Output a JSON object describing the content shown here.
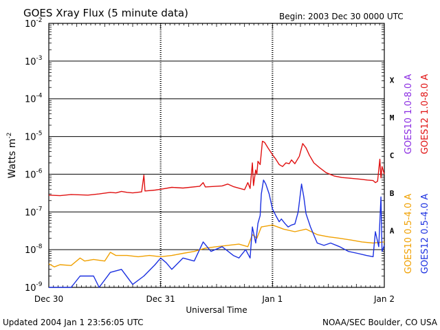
{
  "chart_data": {
    "type": "line",
    "title": "GOES Xray Flux (5 minute data)",
    "begin_label": "Begin:  2003 Dec 30 0000 UTC",
    "xlabel": "Universal Time",
    "ylabel": "Watts m",
    "ylabel_superscript": "-2",
    "footer_left": "Updated 2004 Jan  1 23:56:05 UTC",
    "footer_right": "NOAA/SEC Boulder, CO USA",
    "x_ticks": [
      {
        "day": 0,
        "label": "Dec 30"
      },
      {
        "day": 1,
        "label": "Dec 31"
      },
      {
        "day": 2,
        "label": "Jan 1"
      },
      {
        "day": 3,
        "label": "Jan 2"
      }
    ],
    "xlim_days": [
      0,
      3
    ],
    "y_scale": "log",
    "ylim_exponent": [
      -9,
      -2
    ],
    "y_ticks": [
      {
        "exp": -2,
        "label": "10",
        "sup": "-2"
      },
      {
        "exp": -3,
        "label": "10",
        "sup": "-3"
      },
      {
        "exp": -4,
        "label": "10",
        "sup": "-4"
      },
      {
        "exp": -5,
        "label": "10",
        "sup": "-5"
      },
      {
        "exp": -6,
        "label": "10",
        "sup": "-6"
      },
      {
        "exp": -7,
        "label": "10",
        "sup": "-7"
      },
      {
        "exp": -8,
        "label": "10",
        "sup": "-8"
      },
      {
        "exp": -9,
        "label": "10",
        "sup": "-9"
      }
    ],
    "flare_classes": [
      {
        "label": "X",
        "exp": -4
      },
      {
        "label": "M",
        "exp": -5
      },
      {
        "label": "C",
        "exp": -6
      },
      {
        "label": "B",
        "exp": -7
      },
      {
        "label": "A",
        "exp": -8
      }
    ],
    "right_legend_top": [
      {
        "name": "GOES10 1.0-8.0 A",
        "color": "#8a2be2"
      },
      {
        "name": "GOES12 1.0-8.0 A",
        "color": "#e01010"
      }
    ],
    "right_legend_bottom": [
      {
        "name": "GOES10 0.5-4.0 A",
        "color": "#f0a000"
      },
      {
        "name": "GOES12 0.5-4.0 A",
        "color": "#1a2fe0"
      }
    ],
    "series": [
      {
        "name": "GOES12 1.0-8.0 A",
        "color": "#e01010",
        "points": [
          [
            0.0,
            2.8e-07
          ],
          [
            0.1,
            2.7e-07
          ],
          [
            0.2,
            2.9e-07
          ],
          [
            0.35,
            2.8e-07
          ],
          [
            0.45,
            3e-07
          ],
          [
            0.55,
            3.3e-07
          ],
          [
            0.6,
            3.2e-07
          ],
          [
            0.65,
            3.5e-07
          ],
          [
            0.7,
            3.3e-07
          ],
          [
            0.75,
            3.2e-07
          ],
          [
            0.83,
            3.4e-07
          ],
          [
            0.85,
            9.5e-07
          ],
          [
            0.86,
            3.6e-07
          ],
          [
            0.95,
            3.8e-07
          ],
          [
            1.0,
            4e-07
          ],
          [
            1.1,
            4.5e-07
          ],
          [
            1.2,
            4.3e-07
          ],
          [
            1.35,
            4.8e-07
          ],
          [
            1.38,
            6e-07
          ],
          [
            1.4,
            4.6e-07
          ],
          [
            1.55,
            4.9e-07
          ],
          [
            1.6,
            5.5e-07
          ],
          [
            1.65,
            4.7e-07
          ],
          [
            1.75,
            3.9e-07
          ],
          [
            1.78,
            6e-07
          ],
          [
            1.8,
            4.2e-07
          ],
          [
            1.82,
            2e-06
          ],
          [
            1.83,
            5e-07
          ],
          [
            1.85,
            1.3e-06
          ],
          [
            1.86,
            1e-06
          ],
          [
            1.87,
            2.2e-06
          ],
          [
            1.89,
            1.8e-06
          ],
          [
            1.91,
            7.5e-06
          ],
          [
            1.93,
            7e-06
          ],
          [
            1.96,
            5e-06
          ],
          [
            2.0,
            3.3e-06
          ],
          [
            2.03,
            2.5e-06
          ],
          [
            2.06,
            1.8e-06
          ],
          [
            2.09,
            1.6e-06
          ],
          [
            2.12,
            2e-06
          ],
          [
            2.15,
            1.9e-06
          ],
          [
            2.17,
            2.4e-06
          ],
          [
            2.2,
            1.9e-06
          ],
          [
            2.24,
            3e-06
          ],
          [
            2.27,
            6.5e-06
          ],
          [
            2.3,
            5e-06
          ],
          [
            2.33,
            3.2e-06
          ],
          [
            2.37,
            2e-06
          ],
          [
            2.42,
            1.5e-06
          ],
          [
            2.48,
            1.1e-06
          ],
          [
            2.55,
            9e-07
          ],
          [
            2.62,
            8.2e-07
          ],
          [
            2.7,
            7.8e-07
          ],
          [
            2.78,
            7.4e-07
          ],
          [
            2.85,
            7e-07
          ],
          [
            2.9,
            6.8e-07
          ],
          [
            2.92,
            6e-07
          ],
          [
            2.94,
            6.5e-07
          ],
          [
            2.96,
            2.5e-06
          ],
          [
            2.97,
            8e-07
          ],
          [
            2.98,
            1.6e-06
          ],
          [
            3.0,
            1e-06
          ]
        ]
      },
      {
        "name": "GOES10 0.5-4.0 A",
        "color": "#f0a000",
        "points": [
          [
            0.0,
            4.2e-09
          ],
          [
            0.05,
            3.5e-09
          ],
          [
            0.1,
            4e-09
          ],
          [
            0.2,
            3.8e-09
          ],
          [
            0.28,
            6e-09
          ],
          [
            0.32,
            5e-09
          ],
          [
            0.4,
            5.5e-09
          ],
          [
            0.5,
            5e-09
          ],
          [
            0.55,
            8.5e-09
          ],
          [
            0.6,
            7e-09
          ],
          [
            0.7,
            7e-09
          ],
          [
            0.8,
            6.5e-09
          ],
          [
            0.9,
            7e-09
          ],
          [
            1.0,
            6.5e-09
          ],
          [
            1.1,
            7e-09
          ],
          [
            1.2,
            8e-09
          ],
          [
            1.3,
            9e-09
          ],
          [
            1.4,
            1.1e-08
          ],
          [
            1.5,
            1.2e-08
          ],
          [
            1.6,
            1.3e-08
          ],
          [
            1.7,
            1.4e-08
          ],
          [
            1.78,
            1.2e-08
          ],
          [
            1.82,
            2.5e-08
          ],
          [
            1.86,
            2e-08
          ],
          [
            1.9,
            4e-08
          ],
          [
            2.0,
            4.5e-08
          ],
          [
            2.1,
            3.5e-08
          ],
          [
            2.2,
            3e-08
          ],
          [
            2.3,
            3.5e-08
          ],
          [
            2.4,
            2.5e-08
          ],
          [
            2.5,
            2.2e-08
          ],
          [
            2.6,
            2e-08
          ],
          [
            2.7,
            1.8e-08
          ],
          [
            2.8,
            1.6e-08
          ],
          [
            2.9,
            1.5e-08
          ],
          [
            3.0,
            1.6e-08
          ]
        ]
      },
      {
        "name": "GOES12 0.5-4.0 A",
        "color": "#1a2fe0",
        "points": [
          [
            0.0,
            1e-09
          ],
          [
            0.1,
            1e-09
          ],
          [
            0.2,
            1e-09
          ],
          [
            0.28,
            2e-09
          ],
          [
            0.4,
            2e-09
          ],
          [
            0.45,
            1e-09
          ],
          [
            0.55,
            2.5e-09
          ],
          [
            0.65,
            3e-09
          ],
          [
            0.75,
            1.2e-09
          ],
          [
            0.85,
            2e-09
          ],
          [
            0.95,
            4e-09
          ],
          [
            1.0,
            6e-09
          ],
          [
            1.05,
            4.5e-09
          ],
          [
            1.1,
            3e-09
          ],
          [
            1.2,
            6e-09
          ],
          [
            1.3,
            5e-09
          ],
          [
            1.38,
            1.6e-08
          ],
          [
            1.45,
            9e-09
          ],
          [
            1.55,
            1.2e-08
          ],
          [
            1.65,
            7e-09
          ],
          [
            1.7,
            6e-09
          ],
          [
            1.76,
            1e-08
          ],
          [
            1.8,
            6e-09
          ],
          [
            1.82,
            4e-08
          ],
          [
            1.85,
            1.5e-08
          ],
          [
            1.87,
            5e-08
          ],
          [
            1.89,
            8e-08
          ],
          [
            1.9,
            3e-07
          ],
          [
            1.92,
            7e-07
          ],
          [
            1.94,
            5.5e-07
          ],
          [
            1.97,
            3e-07
          ],
          [
            2.0,
            1.2e-07
          ],
          [
            2.03,
            8e-08
          ],
          [
            2.06,
            5.5e-08
          ],
          [
            2.08,
            6.5e-08
          ],
          [
            2.11,
            5e-08
          ],
          [
            2.14,
            4e-08
          ],
          [
            2.17,
            4.5e-08
          ],
          [
            2.2,
            4.8e-08
          ],
          [
            2.23,
            1e-07
          ],
          [
            2.26,
            5.5e-07
          ],
          [
            2.28,
            2.5e-07
          ],
          [
            2.3,
            9e-08
          ],
          [
            2.34,
            4e-08
          ],
          [
            2.4,
            1.5e-08
          ],
          [
            2.46,
            1.3e-08
          ],
          [
            2.52,
            1.5e-08
          ],
          [
            2.6,
            1.2e-08
          ],
          [
            2.68,
            9e-09
          ],
          [
            2.76,
            8e-09
          ],
          [
            2.84,
            7e-09
          ],
          [
            2.9,
            6.5e-09
          ],
          [
            2.92,
            3e-08
          ],
          [
            2.95,
            1.2e-08
          ],
          [
            2.97,
            2.5e-07
          ],
          [
            2.98,
            9e-09
          ],
          [
            3.0,
            1.3e-08
          ]
        ]
      }
    ]
  }
}
